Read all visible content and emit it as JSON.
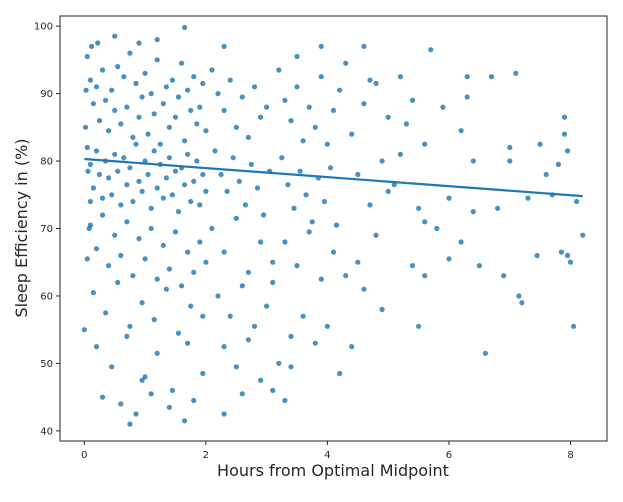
{
  "chart_data": {
    "type": "scatter",
    "title": "",
    "xlabel": "Hours from Optimal Midpoint",
    "ylabel": "Sleep Efficiency in (%)",
    "xlim": [
      -0.4,
      8.6
    ],
    "ylim": [
      38.5,
      101.5
    ],
    "xticks": [
      "0",
      "2",
      "4",
      "6",
      "8"
    ],
    "yticks": [
      "40",
      "50",
      "60",
      "70",
      "80",
      "90",
      "100"
    ],
    "grid": false,
    "legend": "none",
    "point_color": "#1f77b4",
    "regression_line": {
      "x": [
        0.0,
        8.2
      ],
      "y": [
        80.3,
        74.8
      ],
      "color": "#1f77b4"
    },
    "points": [
      [
        0.05,
        95.5
      ],
      [
        0.1,
        92.0
      ],
      [
        0.15,
        88.5
      ],
      [
        0.2,
        91.0
      ],
      [
        0.25,
        86.0
      ],
      [
        0.3,
        93.5
      ],
      [
        0.35,
        89.0
      ],
      [
        0.4,
        84.5
      ],
      [
        0.45,
        90.5
      ],
      [
        0.5,
        87.5
      ],
      [
        0.55,
        94.0
      ],
      [
        0.6,
        85.5
      ],
      [
        0.65,
        92.5
      ],
      [
        0.7,
        88.0
      ],
      [
        0.75,
        96.0
      ],
      [
        0.8,
        83.5
      ],
      [
        0.85,
        91.5
      ],
      [
        0.9,
        86.5
      ],
      [
        0.95,
        89.5
      ],
      [
        1.0,
        93.0
      ],
      [
        1.05,
        84.0
      ],
      [
        1.1,
        90.0
      ],
      [
        1.15,
        87.0
      ],
      [
        1.2,
        95.0
      ],
      [
        1.25,
        82.5
      ],
      [
        1.3,
        88.5
      ],
      [
        1.35,
        91.0
      ],
      [
        1.4,
        85.0
      ],
      [
        1.45,
        92.0
      ],
      [
        1.5,
        86.5
      ],
      [
        1.55,
        89.5
      ],
      [
        1.6,
        94.5
      ],
      [
        1.65,
        83.0
      ],
      [
        1.7,
        90.5
      ],
      [
        1.75,
        87.5
      ],
      [
        1.8,
        92.5
      ],
      [
        1.85,
        85.5
      ],
      [
        1.9,
        88.0
      ],
      [
        1.95,
        91.5
      ],
      [
        2.0,
        84.5
      ],
      [
        0.05,
        82.0
      ],
      [
        0.1,
        79.5
      ],
      [
        0.15,
        76.0
      ],
      [
        0.2,
        81.5
      ],
      [
        0.25,
        78.0
      ],
      [
        0.3,
        74.5
      ],
      [
        0.35,
        80.0
      ],
      [
        0.4,
        77.5
      ],
      [
        0.45,
        75.0
      ],
      [
        0.5,
        81.0
      ],
      [
        0.55,
        78.5
      ],
      [
        0.6,
        73.5
      ],
      [
        0.65,
        80.5
      ],
      [
        0.7,
        76.5
      ],
      [
        0.75,
        79.0
      ],
      [
        0.8,
        74.0
      ],
      [
        0.85,
        82.5
      ],
      [
        0.9,
        77.0
      ],
      [
        0.95,
        75.5
      ],
      [
        1.0,
        80.0
      ],
      [
        1.05,
        78.0
      ],
      [
        1.1,
        73.0
      ],
      [
        1.15,
        81.5
      ],
      [
        1.2,
        76.0
      ],
      [
        1.25,
        79.5
      ],
      [
        1.3,
        74.5
      ],
      [
        1.35,
        77.5
      ],
      [
        1.4,
        80.5
      ],
      [
        1.45,
        75.0
      ],
      [
        1.5,
        78.5
      ],
      [
        1.55,
        72.5
      ],
      [
        1.6,
        79.0
      ],
      [
        1.65,
        76.5
      ],
      [
        1.7,
        81.0
      ],
      [
        1.75,
        74.0
      ],
      [
        1.8,
        77.0
      ],
      [
        1.85,
        80.0
      ],
      [
        1.9,
        73.5
      ],
      [
        1.95,
        78.0
      ],
      [
        2.0,
        75.5
      ],
      [
        0.1,
        70.5
      ],
      [
        0.2,
        67.0
      ],
      [
        0.3,
        72.0
      ],
      [
        0.4,
        64.5
      ],
      [
        0.5,
        69.0
      ],
      [
        0.6,
        66.0
      ],
      [
        0.7,
        71.0
      ],
      [
        0.8,
        63.0
      ],
      [
        0.9,
        68.5
      ],
      [
        1.0,
        65.5
      ],
      [
        1.1,
        70.0
      ],
      [
        1.2,
        62.5
      ],
      [
        1.3,
        67.5
      ],
      [
        1.4,
        64.0
      ],
      [
        1.5,
        69.5
      ],
      [
        1.6,
        61.5
      ],
      [
        1.7,
        66.5
      ],
      [
        1.8,
        63.5
      ],
      [
        1.9,
        68.0
      ],
      [
        2.0,
        65.0
      ],
      [
        0.15,
        60.5
      ],
      [
        0.35,
        57.5
      ],
      [
        0.55,
        62.0
      ],
      [
        0.75,
        55.5
      ],
      [
        0.95,
        59.0
      ],
      [
        1.15,
        56.5
      ],
      [
        1.35,
        61.0
      ],
      [
        1.55,
        54.5
      ],
      [
        1.75,
        58.5
      ],
      [
        1.95,
        57.0
      ],
      [
        0.2,
        52.5
      ],
      [
        0.45,
        49.5
      ],
      [
        0.7,
        54.0
      ],
      [
        0.95,
        47.5
      ],
      [
        1.2,
        51.5
      ],
      [
        1.45,
        46.0
      ],
      [
        1.7,
        53.0
      ],
      [
        1.95,
        48.5
      ],
      [
        0.3,
        45.0
      ],
      [
        0.6,
        44.0
      ],
      [
        0.85,
        42.5
      ],
      [
        1.1,
        45.5
      ],
      [
        1.4,
        43.5
      ],
      [
        1.65,
        41.5
      ],
      [
        2.3,
        42.5
      ],
      [
        0.75,
        41.0
      ],
      [
        0.0,
        55.0
      ],
      [
        0.05,
        65.5
      ],
      [
        0.1,
        74.0
      ],
      [
        0.02,
        85.0
      ],
      [
        0.03,
        90.5
      ],
      [
        0.06,
        78.5
      ],
      [
        0.08,
        70.0
      ],
      [
        0.12,
        97.0
      ],
      [
        0.22,
        97.5
      ],
      [
        0.5,
        98.5
      ],
      [
        0.9,
        97.5
      ],
      [
        1.2,
        98.0
      ],
      [
        1.65,
        99.8
      ],
      [
        2.3,
        97.0
      ],
      [
        2.1,
        93.5
      ],
      [
        2.2,
        90.0
      ],
      [
        2.3,
        87.5
      ],
      [
        2.4,
        92.0
      ],
      [
        2.5,
        85.0
      ],
      [
        2.6,
        89.5
      ],
      [
        2.7,
        83.5
      ],
      [
        2.8,
        91.0
      ],
      [
        2.9,
        86.5
      ],
      [
        3.0,
        88.0
      ],
      [
        2.15,
        81.5
      ],
      [
        2.25,
        78.0
      ],
      [
        2.35,
        75.5
      ],
      [
        2.45,
        80.5
      ],
      [
        2.55,
        77.0
      ],
      [
        2.65,
        73.5
      ],
      [
        2.75,
        79.5
      ],
      [
        2.85,
        76.0
      ],
      [
        2.95,
        72.0
      ],
      [
        3.05,
        78.5
      ],
      [
        2.1,
        70.0
      ],
      [
        2.3,
        66.5
      ],
      [
        2.5,
        71.5
      ],
      [
        2.7,
        63.5
      ],
      [
        2.9,
        68.0
      ],
      [
        3.1,
        65.0
      ],
      [
        2.2,
        60.0
      ],
      [
        2.4,
        57.0
      ],
      [
        2.6,
        61.5
      ],
      [
        2.8,
        55.5
      ],
      [
        3.0,
        58.5
      ],
      [
        2.3,
        52.5
      ],
      [
        2.5,
        49.5
      ],
      [
        2.7,
        53.5
      ],
      [
        2.9,
        47.5
      ],
      [
        3.1,
        46.0
      ],
      [
        3.3,
        44.5
      ],
      [
        3.2,
        50.0
      ],
      [
        3.4,
        54.0
      ],
      [
        3.1,
        62.0
      ],
      [
        3.2,
        93.5
      ],
      [
        3.3,
        89.0
      ],
      [
        3.4,
        86.0
      ],
      [
        3.5,
        91.0
      ],
      [
        3.6,
        83.0
      ],
      [
        3.7,
        88.0
      ],
      [
        3.8,
        85.0
      ],
      [
        3.9,
        92.5
      ],
      [
        4.0,
        82.5
      ],
      [
        4.1,
        87.5
      ],
      [
        3.25,
        80.5
      ],
      [
        3.35,
        76.5
      ],
      [
        3.45,
        73.0
      ],
      [
        3.55,
        78.5
      ],
      [
        3.65,
        75.0
      ],
      [
        3.75,
        71.0
      ],
      [
        3.85,
        77.5
      ],
      [
        3.95,
        74.0
      ],
      [
        4.05,
        79.0
      ],
      [
        4.15,
        70.5
      ],
      [
        3.3,
        68.0
      ],
      [
        3.5,
        64.5
      ],
      [
        3.7,
        69.5
      ],
      [
        3.9,
        62.5
      ],
      [
        4.1,
        66.5
      ],
      [
        4.3,
        63.0
      ],
      [
        3.6,
        57.0
      ],
      [
        3.8,
        53.0
      ],
      [
        4.0,
        55.5
      ],
      [
        4.2,
        48.5
      ],
      [
        4.4,
        52.5
      ],
      [
        3.5,
        95.5
      ],
      [
        3.9,
        97.0
      ],
      [
        4.3,
        94.5
      ],
      [
        4.2,
        90.5
      ],
      [
        4.4,
        84.0
      ],
      [
        4.5,
        78.0
      ],
      [
        4.6,
        88.5
      ],
      [
        4.7,
        73.5
      ],
      [
        4.8,
        91.5
      ],
      [
        4.9,
        80.0
      ],
      [
        5.0,
        86.5
      ],
      [
        4.5,
        65.0
      ],
      [
        4.6,
        61.0
      ],
      [
        4.8,
        69.0
      ],
      [
        5.0,
        75.5
      ],
      [
        4.6,
        97.0
      ],
      [
        4.7,
        92.0
      ],
      [
        5.2,
        92.5
      ],
      [
        5.3,
        85.5
      ],
      [
        5.1,
        76.5
      ],
      [
        5.2,
        81.0
      ],
      [
        5.4,
        89.0
      ],
      [
        5.5,
        73.0
      ],
      [
        5.4,
        64.5
      ],
      [
        5.6,
        63.0
      ],
      [
        5.5,
        55.5
      ],
      [
        5.6,
        71.0
      ],
      [
        5.7,
        96.5
      ],
      [
        5.6,
        82.5
      ],
      [
        5.9,
        88.0
      ],
      [
        6.0,
        74.5
      ],
      [
        6.0,
        65.5
      ],
      [
        6.2,
        84.5
      ],
      [
        6.3,
        92.5
      ],
      [
        6.3,
        89.5
      ],
      [
        6.4,
        80.0
      ],
      [
        6.4,
        72.5
      ],
      [
        6.2,
        68.0
      ],
      [
        6.5,
        64.5
      ],
      [
        6.6,
        51.5
      ],
      [
        6.7,
        92.5
      ],
      [
        6.9,
        63.0
      ],
      [
        7.0,
        82.0
      ],
      [
        7.0,
        80.0
      ],
      [
        7.1,
        93.0
      ],
      [
        7.15,
        60.0
      ],
      [
        7.2,
        59.0
      ],
      [
        7.3,
        74.5
      ],
      [
        7.45,
        66.0
      ],
      [
        7.5,
        82.5
      ],
      [
        7.6,
        78.0
      ],
      [
        7.8,
        79.5
      ],
      [
        7.85,
        66.5
      ],
      [
        7.9,
        84.0
      ],
      [
        7.9,
        86.5
      ],
      [
        7.95,
        81.5
      ],
      [
        7.95,
        66.0
      ],
      [
        8.0,
        65.0
      ],
      [
        8.05,
        55.5
      ],
      [
        8.1,
        74.0
      ],
      [
        8.2,
        69.0
      ],
      [
        7.7,
        75.0
      ],
      [
        6.8,
        73.0
      ],
      [
        5.8,
        70.0
      ],
      [
        4.9,
        58.0
      ],
      [
        3.4,
        49.5
      ],
      [
        2.6,
        45.5
      ],
      [
        1.8,
        44.5
      ],
      [
        1.0,
        48.0
      ]
    ]
  }
}
